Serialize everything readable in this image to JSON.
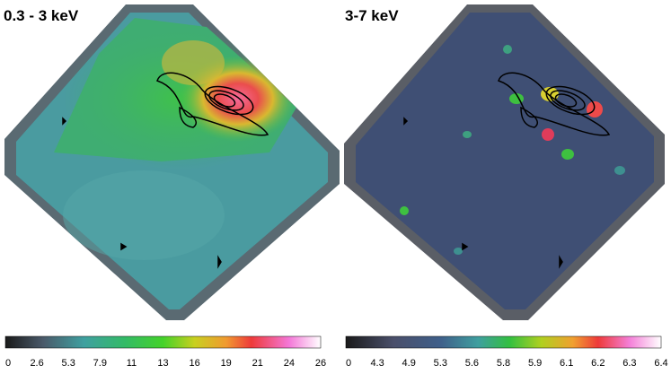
{
  "panels": [
    {
      "title": "0.3 - 3 keV",
      "colorbar_ticks": [
        0,
        2.6,
        5.3,
        7.9,
        11,
        13,
        16,
        19,
        21,
        24,
        26
      ]
    },
    {
      "title": "3-7 keV",
      "colorbar_ticks": [
        0,
        4.3,
        4.9,
        5.3,
        5.6,
        5.8,
        5.9,
        6.1,
        6.2,
        6.3,
        6.4
      ]
    }
  ]
}
